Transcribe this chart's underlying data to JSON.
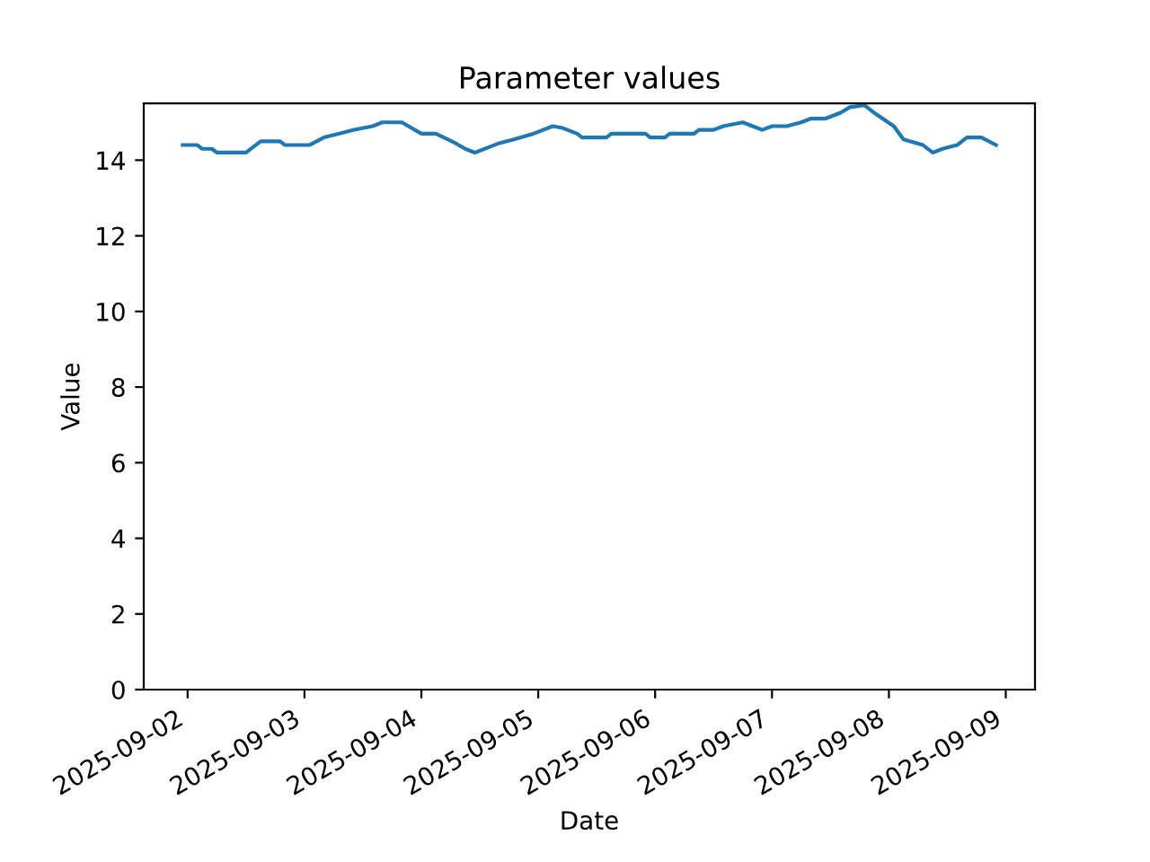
{
  "chart_data": {
    "type": "line",
    "title": "Parameter values",
    "xlabel": "Date",
    "ylabel": "Value",
    "x": [
      "2025-09-01T23:00",
      "2025-09-02T02:00",
      "2025-09-02T03:00",
      "2025-09-02T05:00",
      "2025-09-02T06:00",
      "2025-09-02T12:00",
      "2025-09-02T15:00",
      "2025-09-02T19:00",
      "2025-09-02T20:00",
      "2025-09-03T01:00",
      "2025-09-03T04:00",
      "2025-09-03T07:00",
      "2025-09-03T10:00",
      "2025-09-03T14:00",
      "2025-09-03T16:00",
      "2025-09-03T20:00",
      "2025-09-04T00:00",
      "2025-09-04T03:00",
      "2025-09-04T07:00",
      "2025-09-04T09:00",
      "2025-09-04T11:00",
      "2025-09-04T14:00",
      "2025-09-04T16:00",
      "2025-09-04T19:00",
      "2025-09-04T23:00",
      "2025-09-05T03:00",
      "2025-09-05T05:00",
      "2025-09-05T08:00",
      "2025-09-05T09:00",
      "2025-09-05T14:00",
      "2025-09-05T15:00",
      "2025-09-05T22:00",
      "2025-09-05T23:00",
      "2025-09-06T02:00",
      "2025-09-06T03:00",
      "2025-09-06T08:00",
      "2025-09-06T09:00",
      "2025-09-06T12:00",
      "2025-09-06T14:00",
      "2025-09-06T18:00",
      "2025-09-06T20:00",
      "2025-09-06T22:00",
      "2025-09-07T00:00",
      "2025-09-07T03:00",
      "2025-09-07T06:00",
      "2025-09-07T08:00",
      "2025-09-07T11:00",
      "2025-09-07T14:00",
      "2025-09-07T16:00",
      "2025-09-07T19:00",
      "2025-09-07T21:00",
      "2025-09-08T01:00",
      "2025-09-08T03:00",
      "2025-09-08T07:00",
      "2025-09-08T09:00",
      "2025-09-08T11:00",
      "2025-09-08T14:00",
      "2025-09-08T16:00",
      "2025-09-08T19:00",
      "2025-09-08T22:00"
    ],
    "series": [
      {
        "color": "#1f77b4",
        "values": [
          14.4,
          14.4,
          14.3,
          14.3,
          14.2,
          14.2,
          14.5,
          14.5,
          14.4,
          14.4,
          14.6,
          14.7,
          14.8,
          14.9,
          15.0,
          15.0,
          14.7,
          14.7,
          14.45,
          14.3,
          14.2,
          14.35,
          14.45,
          14.55,
          14.7,
          14.9,
          14.85,
          14.7,
          14.6,
          14.6,
          14.7,
          14.7,
          14.6,
          14.6,
          14.7,
          14.7,
          14.8,
          14.8,
          14.9,
          15.0,
          14.9,
          14.8,
          14.9,
          14.9,
          15.0,
          15.1,
          15.1,
          15.25,
          15.4,
          15.45,
          15.25,
          14.9,
          14.55,
          14.4,
          14.2,
          14.3,
          14.4,
          14.6,
          14.6,
          14.4
        ]
      }
    ],
    "xlim": [
      "2025-09-01T15:00",
      "2025-09-09T06:00"
    ],
    "xticks": [
      {
        "value": "2025-09-02",
        "label": "2025-09-02"
      },
      {
        "value": "2025-09-03",
        "label": "2025-09-03"
      },
      {
        "value": "2025-09-04",
        "label": "2025-09-04"
      },
      {
        "value": "2025-09-05",
        "label": "2025-09-05"
      },
      {
        "value": "2025-09-06",
        "label": "2025-09-06"
      },
      {
        "value": "2025-09-07",
        "label": "2025-09-07"
      },
      {
        "value": "2025-09-08",
        "label": "2025-09-08"
      },
      {
        "value": "2025-09-09",
        "label": "2025-09-09"
      }
    ],
    "ylim": [
      0,
      15.5
    ],
    "yticks": [
      0,
      2,
      4,
      6,
      8,
      10,
      12,
      14
    ],
    "grid": false,
    "legend": false,
    "marker": "none",
    "line_style": "solid"
  }
}
